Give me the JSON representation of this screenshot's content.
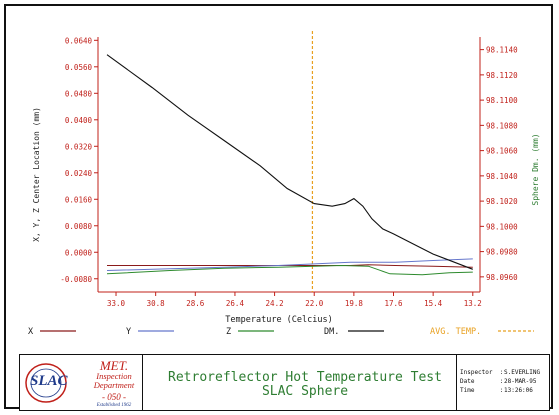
{
  "chart_data": {
    "type": "line",
    "xlabel": "Temperature (Celcius)",
    "ylabel": "X, Y, Z Center Location (mm)",
    "y2label": "Sphere Dm. (mm)",
    "x_ticks": [
      "33.0",
      "30.8",
      "28.6",
      "26.4",
      "24.2",
      "22.0",
      "19.8",
      "17.6",
      "15.4",
      "13.2"
    ],
    "xlim": [
      34.0,
      12.8
    ],
    "ylim": [
      -0.012,
      0.065
    ],
    "y2lim": [
      98.0948,
      98.115
    ],
    "y_ticks": [
      "0.0640",
      "0.0560",
      "0.0480",
      "0.0400",
      "0.0320",
      "0.0240",
      "0.0160",
      "0.0080",
      "0.0000",
      "-0.0080"
    ],
    "y_tick_values": [
      0.064,
      0.056,
      0.048,
      0.04,
      0.032,
      0.024,
      0.016,
      0.008,
      0.0,
      -0.008
    ],
    "y2_ticks": [
      "98.1140",
      "98.1120",
      "98.1100",
      "98.1080",
      "98.1060",
      "98.1040",
      "98.1020",
      "98.1000",
      "98.0980",
      "98.0960"
    ],
    "y2_tick_values": [
      98.114,
      98.112,
      98.11,
      98.108,
      98.106,
      98.104,
      98.102,
      98.1,
      98.098,
      98.096
    ],
    "avg_temp": 22.1,
    "legend": [
      {
        "label": "X",
        "color": "#8b1a1a"
      },
      {
        "label": "Y",
        "color": "#6677cc"
      },
      {
        "label": "Z",
        "color": "#2e8b2e"
      },
      {
        "label": "DM.",
        "color": "#111111"
      },
      {
        "label": "AVG. TEMP.",
        "color": "#e8a020"
      }
    ],
    "series": [
      {
        "name": "X",
        "axis": "left",
        "color": "#8b1a1a",
        "x": [
          33.5,
          31.0,
          28.0,
          25.0,
          22.0,
          20.0,
          19.0,
          17.5,
          15.4,
          13.2
        ],
        "y": [
          -0.004,
          -0.004,
          -0.004,
          -0.004,
          -0.004,
          -0.004,
          -0.0038,
          -0.004,
          -0.0042,
          -0.0045
        ]
      },
      {
        "name": "Y",
        "axis": "left",
        "color": "#6677cc",
        "x": [
          33.5,
          30.0,
          27.0,
          24.0,
          22.0,
          20.0,
          19.0,
          17.5,
          15.4,
          13.2
        ],
        "y": [
          -0.0055,
          -0.005,
          -0.0045,
          -0.004,
          -0.0035,
          -0.003,
          -0.003,
          -0.003,
          -0.0025,
          -0.002
        ]
      },
      {
        "name": "Z",
        "axis": "left",
        "color": "#2e8b2e",
        "x": [
          33.5,
          30.0,
          27.0,
          24.0,
          22.0,
          20.5,
          19.0,
          17.8,
          16.0,
          14.5,
          13.2
        ],
        "y": [
          -0.0065,
          -0.0055,
          -0.0048,
          -0.0045,
          -0.0042,
          -0.004,
          -0.0042,
          -0.0065,
          -0.0068,
          -0.0062,
          -0.006
        ]
      },
      {
        "name": "DM.",
        "axis": "right",
        "color": "#111111",
        "x": [
          33.5,
          31.0,
          29.0,
          27.0,
          25.0,
          23.5,
          22.0,
          21.0,
          20.3,
          19.8,
          19.3,
          18.8,
          18.2,
          17.6,
          16.5,
          15.4,
          14.3,
          13.2
        ],
        "y": [
          98.1136,
          98.111,
          98.1088,
          98.1068,
          98.1048,
          98.103,
          98.1018,
          98.1016,
          98.1018,
          98.1022,
          98.1016,
          98.1006,
          98.0998,
          98.0994,
          98.0986,
          98.0978,
          98.0972,
          98.0966
        ]
      }
    ]
  },
  "titleblock": {
    "logo_text": "SLAC",
    "dept_met": "MET.",
    "dept_line1": "Inspection",
    "dept_line2": "Department",
    "dept_number": "- 050 -",
    "dept_established": "Established 1962",
    "title_line1": "Retroreflector Hot Temperature Test",
    "title_line2": "SLAC Sphere",
    "inspector_label": "Inspector  :",
    "inspector_value": "S.EVERLING",
    "date_label": "Date       :",
    "date_value": "28-MAR-95",
    "time_label": "Time       :",
    "time_value": "13:26:06"
  }
}
